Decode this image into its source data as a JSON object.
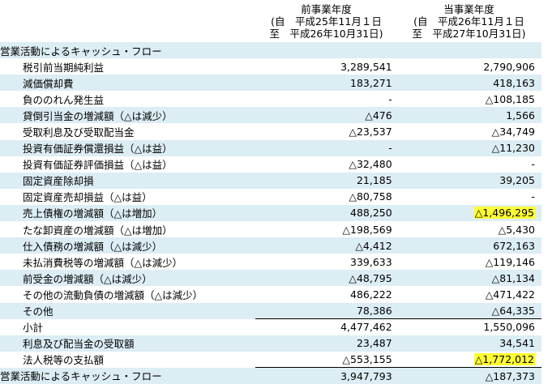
{
  "header": {
    "columns": [
      {
        "title": "前事業年度",
        "from": "(自　平成25年11月１日",
        "to": "至　平成26年10月31日)"
      },
      {
        "title": "当事業年度",
        "from": "(自　平成26年11月１日",
        "to": "至　平成27年10月31日)"
      }
    ]
  },
  "highlight_color": "#ffff33",
  "rows": [
    {
      "label": "営業活動によるキャッシュ・フロー",
      "values": []
    },
    {
      "label": "税引前当期純利益",
      "values": [
        "3,289,541",
        "2,790,906"
      ]
    },
    {
      "label": "減価償却費",
      "values": [
        "183,271",
        "418,163"
      ]
    },
    {
      "label": "負ののれん発生益",
      "values": [
        "-",
        "△108,185"
      ]
    },
    {
      "label": "貸倒引当金の増減額（△は減少）",
      "values": [
        "△476",
        "1,566"
      ]
    },
    {
      "label": "受取利息及び受取配当金",
      "values": [
        "△23,537",
        "△34,749"
      ]
    },
    {
      "label": "投資有価証券償還損益（△は益）",
      "values": [
        "-",
        "△11,230"
      ]
    },
    {
      "label": "投資有価証券評価損益（△は益）",
      "values": [
        "△32,480",
        "-"
      ]
    },
    {
      "label": "固定資産除却損",
      "values": [
        "21,185",
        "39,205"
      ]
    },
    {
      "label": "固定資産売却損益（△は益）",
      "values": [
        "△80,758",
        "-"
      ]
    },
    {
      "label": "売上債権の増減額（△は増加）",
      "values": [
        "488,250",
        "△1,496,295"
      ],
      "highlight": 1
    },
    {
      "label": "たな卸資産の増減額（△は増加）",
      "values": [
        "△198,569",
        "△5,430"
      ]
    },
    {
      "label": "仕入債務の増減額（△は減少）",
      "values": [
        "△4,412",
        "672,163"
      ]
    },
    {
      "label": "未払消費税等の増減額（△は減少）",
      "values": [
        "339,633",
        "△119,146"
      ]
    },
    {
      "label": "前受金の増減額（△は減少）",
      "values": [
        "△48,795",
        "△81,134"
      ]
    },
    {
      "label": "その他の流動負債の増減額（△は減少）",
      "values": [
        "486,222",
        "△471,422"
      ]
    },
    {
      "label": "その他",
      "values": [
        "78,386",
        "△64,335"
      ]
    },
    {
      "label": "小計",
      "values": [
        "4,477,462",
        "1,550,096"
      ]
    },
    {
      "label": "利息及び配当金の受取額",
      "values": [
        "23,487",
        "34,541"
      ]
    },
    {
      "label": "法人税等の支払額",
      "values": [
        "△553,155",
        "△1,772,012"
      ],
      "highlight": 1
    },
    {
      "label": "営業活動によるキャッシュ・フロー",
      "values": [
        "3,947,793",
        "△187,373"
      ]
    }
  ]
}
